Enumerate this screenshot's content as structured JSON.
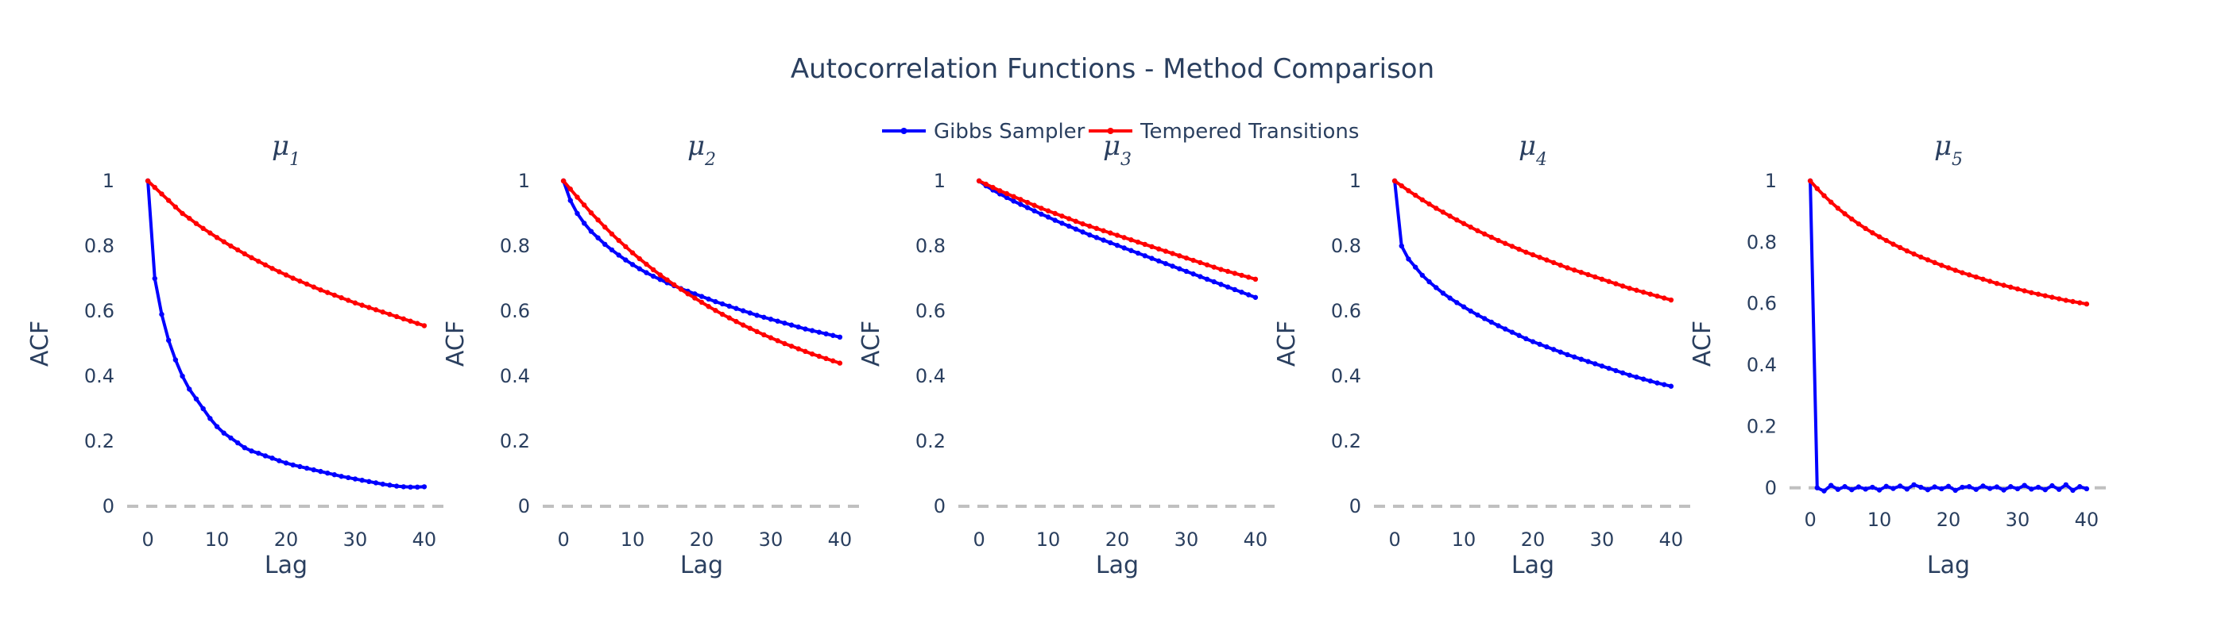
{
  "chart_data": {
    "type": "line",
    "title": "Autocorrelation Functions - Method Comparison",
    "legend": {
      "placement": "top-center",
      "entries": [
        {
          "name": "Gibbs Sampler",
          "color": "#0000ff"
        },
        {
          "name": "Tempered Transitions",
          "color": "#ff0000"
        }
      ]
    },
    "xlabel": "Lag",
    "ylabel": "ACF",
    "xlim": [
      -3,
      43
    ],
    "xticks": [
      0,
      10,
      20,
      30,
      40
    ],
    "grid": false,
    "zero_line": {
      "style": "dashed",
      "color": "#c0c0c0"
    },
    "panels": [
      {
        "subtitle_base": "μ",
        "subtitle_sub": "1",
        "ylim": [
          0,
          1
        ],
        "yticks": [
          0,
          0.2,
          0.4,
          0.6,
          0.8,
          1
        ],
        "series": [
          {
            "name": "Gibbs Sampler",
            "color": "#0000ff",
            "x": [
              0,
              1,
              2,
              3,
              4,
              5,
              6,
              7,
              8,
              9,
              10,
              11,
              12,
              13,
              14,
              15,
              16,
              17,
              18,
              19,
              20,
              21,
              22,
              23,
              24,
              25,
              26,
              27,
              28,
              29,
              30,
              31,
              32,
              33,
              34,
              35,
              36,
              37,
              38,
              39,
              40
            ],
            "values": [
              1.0,
              0.7,
              0.59,
              0.51,
              0.45,
              0.4,
              0.36,
              0.33,
              0.3,
              0.27,
              0.245,
              0.225,
              0.21,
              0.195,
              0.18,
              0.17,
              0.163,
              0.155,
              0.148,
              0.14,
              0.133,
              0.127,
              0.122,
              0.117,
              0.112,
              0.107,
              0.102,
              0.097,
              0.092,
              0.088,
              0.084,
              0.08,
              0.076,
              0.072,
              0.068,
              0.065,
              0.062,
              0.06,
              0.059,
              0.059,
              0.06
            ]
          },
          {
            "name": "Tempered Transitions",
            "color": "#ff0000",
            "x": [
              0,
              1,
              2,
              3,
              4,
              5,
              6,
              7,
              8,
              9,
              10,
              11,
              12,
              13,
              14,
              15,
              16,
              17,
              18,
              19,
              20,
              21,
              22,
              23,
              24,
              25,
              26,
              27,
              28,
              29,
              30,
              31,
              32,
              33,
              34,
              35,
              36,
              37,
              38,
              39,
              40
            ],
            "values": [
              1.0,
              0.98,
              0.96,
              0.94,
              0.92,
              0.9,
              0.885,
              0.869,
              0.854,
              0.84,
              0.826,
              0.813,
              0.8,
              0.788,
              0.776,
              0.764,
              0.753,
              0.742,
              0.731,
              0.721,
              0.711,
              0.701,
              0.692,
              0.683,
              0.674,
              0.665,
              0.657,
              0.649,
              0.641,
              0.633,
              0.625,
              0.618,
              0.611,
              0.604,
              0.597,
              0.59,
              0.583,
              0.576,
              0.569,
              0.562,
              0.555
            ]
          }
        ]
      },
      {
        "subtitle_base": "μ",
        "subtitle_sub": "2",
        "ylim": [
          0,
          1
        ],
        "yticks": [
          0,
          0.2,
          0.4,
          0.6,
          0.8,
          1
        ],
        "series": [
          {
            "name": "Gibbs Sampler",
            "color": "#0000ff",
            "x": [
              0,
              1,
              2,
              3,
              4,
              5,
              6,
              7,
              8,
              9,
              10,
              11,
              12,
              13,
              14,
              15,
              16,
              17,
              18,
              19,
              20,
              21,
              22,
              23,
              24,
              25,
              26,
              27,
              28,
              29,
              30,
              31,
              32,
              33,
              34,
              35,
              36,
              37,
              38,
              39,
              40
            ],
            "values": [
              1.0,
              0.94,
              0.9,
              0.87,
              0.845,
              0.825,
              0.805,
              0.788,
              0.772,
              0.757,
              0.743,
              0.73,
              0.718,
              0.707,
              0.697,
              0.687,
              0.678,
              0.669,
              0.661,
              0.653,
              0.645,
              0.637,
              0.629,
              0.622,
              0.615,
              0.608,
              0.601,
              0.594,
              0.587,
              0.581,
              0.575,
              0.569,
              0.563,
              0.557,
              0.551,
              0.545,
              0.54,
              0.535,
              0.53,
              0.525,
              0.52
            ]
          },
          {
            "name": "Tempered Transitions",
            "color": "#ff0000",
            "x": [
              0,
              1,
              2,
              3,
              4,
              5,
              6,
              7,
              8,
              9,
              10,
              11,
              12,
              13,
              14,
              15,
              16,
              17,
              18,
              19,
              20,
              21,
              22,
              23,
              24,
              25,
              26,
              27,
              28,
              29,
              30,
              31,
              32,
              33,
              34,
              35,
              36,
              37,
              38,
              39,
              40
            ],
            "values": [
              1.0,
              0.975,
              0.95,
              0.926,
              0.902,
              0.88,
              0.858,
              0.837,
              0.817,
              0.798,
              0.779,
              0.761,
              0.744,
              0.727,
              0.711,
              0.696,
              0.681,
              0.667,
              0.653,
              0.64,
              0.627,
              0.614,
              0.602,
              0.59,
              0.579,
              0.568,
              0.557,
              0.547,
              0.537,
              0.527,
              0.518,
              0.509,
              0.5,
              0.492,
              0.484,
              0.476,
              0.468,
              0.461,
              0.454,
              0.447,
              0.44
            ]
          }
        ]
      },
      {
        "subtitle_base": "μ",
        "subtitle_sub": "3",
        "ylim": [
          0,
          1
        ],
        "yticks": [
          0,
          0.2,
          0.4,
          0.6,
          0.8,
          1
        ],
        "series": [
          {
            "name": "Gibbs Sampler",
            "color": "#0000ff",
            "x": [
              0,
              1,
              2,
              3,
              4,
              5,
              6,
              7,
              8,
              9,
              10,
              11,
              12,
              13,
              14,
              15,
              16,
              17,
              18,
              19,
              20,
              21,
              22,
              23,
              24,
              25,
              26,
              27,
              28,
              29,
              30,
              31,
              32,
              33,
              34,
              35,
              36,
              37,
              38,
              39,
              40
            ],
            "values": [
              1.0,
              0.985,
              0.972,
              0.96,
              0.949,
              0.938,
              0.928,
              0.918,
              0.908,
              0.898,
              0.889,
              0.879,
              0.87,
              0.861,
              0.852,
              0.843,
              0.834,
              0.826,
              0.818,
              0.81,
              0.802,
              0.794,
              0.786,
              0.778,
              0.77,
              0.762,
              0.754,
              0.746,
              0.738,
              0.73,
              0.722,
              0.714,
              0.706,
              0.698,
              0.69,
              0.682,
              0.674,
              0.666,
              0.658,
              0.65,
              0.642
            ]
          },
          {
            "name": "Tempered Transitions",
            "color": "#ff0000",
            "x": [
              0,
              1,
              2,
              3,
              4,
              5,
              6,
              7,
              8,
              9,
              10,
              11,
              12,
              13,
              14,
              15,
              16,
              17,
              18,
              19,
              20,
              21,
              22,
              23,
              24,
              25,
              26,
              27,
              28,
              29,
              30,
              31,
              32,
              33,
              34,
              35,
              36,
              37,
              38,
              39,
              40
            ],
            "values": [
              1.0,
              0.99,
              0.98,
              0.97,
              0.961,
              0.952,
              0.943,
              0.934,
              0.925,
              0.916,
              0.908,
              0.9,
              0.892,
              0.884,
              0.876,
              0.868,
              0.861,
              0.854,
              0.847,
              0.84,
              0.833,
              0.826,
              0.819,
              0.812,
              0.805,
              0.798,
              0.791,
              0.784,
              0.777,
              0.77,
              0.763,
              0.756,
              0.749,
              0.742,
              0.735,
              0.728,
              0.722,
              0.716,
              0.71,
              0.704,
              0.698
            ]
          }
        ]
      },
      {
        "subtitle_base": "μ",
        "subtitle_sub": "4",
        "ylim": [
          0,
          1
        ],
        "yticks": [
          0,
          0.2,
          0.4,
          0.6,
          0.8,
          1
        ],
        "series": [
          {
            "name": "Gibbs Sampler",
            "color": "#0000ff",
            "x": [
              0,
              1,
              2,
              3,
              4,
              5,
              6,
              7,
              8,
              9,
              10,
              11,
              12,
              13,
              14,
              15,
              16,
              17,
              18,
              19,
              20,
              21,
              22,
              23,
              24,
              25,
              26,
              27,
              28,
              29,
              30,
              31,
              32,
              33,
              34,
              35,
              36,
              37,
              38,
              39,
              40
            ],
            "values": [
              1.0,
              0.8,
              0.76,
              0.735,
              0.71,
              0.69,
              0.672,
              0.655,
              0.64,
              0.626,
              0.613,
              0.6,
              0.588,
              0.577,
              0.566,
              0.555,
              0.545,
              0.535,
              0.525,
              0.515,
              0.506,
              0.498,
              0.49,
              0.482,
              0.474,
              0.466,
              0.459,
              0.452,
              0.445,
              0.438,
              0.431,
              0.424,
              0.417,
              0.41,
              0.403,
              0.397,
              0.391,
              0.385,
              0.379,
              0.374,
              0.369
            ]
          },
          {
            "name": "Tempered Transitions",
            "color": "#ff0000",
            "x": [
              0,
              1,
              2,
              3,
              4,
              5,
              6,
              7,
              8,
              9,
              10,
              11,
              12,
              13,
              14,
              15,
              16,
              17,
              18,
              19,
              20,
              21,
              22,
              23,
              24,
              25,
              26,
              27,
              28,
              29,
              30,
              31,
              32,
              33,
              34,
              35,
              36,
              37,
              38,
              39,
              40
            ],
            "values": [
              1.0,
              0.985,
              0.97,
              0.956,
              0.942,
              0.929,
              0.916,
              0.904,
              0.892,
              0.88,
              0.869,
              0.858,
              0.847,
              0.837,
              0.827,
              0.817,
              0.808,
              0.799,
              0.79,
              0.781,
              0.773,
              0.765,
              0.757,
              0.749,
              0.741,
              0.733,
              0.726,
              0.719,
              0.712,
              0.705,
              0.698,
              0.691,
              0.684,
              0.677,
              0.67,
              0.664,
              0.658,
              0.652,
              0.646,
              0.64,
              0.634
            ]
          }
        ]
      },
      {
        "subtitle_base": "μ",
        "subtitle_sub": "5",
        "ylim": [
          -0.06,
          1
        ],
        "yticks": [
          0,
          0.2,
          0.4,
          0.6,
          0.8,
          1
        ],
        "series": [
          {
            "name": "Gibbs Sampler",
            "color": "#0000ff",
            "x": [
              0,
              1,
              2,
              3,
              4,
              5,
              6,
              7,
              8,
              9,
              10,
              11,
              12,
              13,
              14,
              15,
              16,
              17,
              18,
              19,
              20,
              21,
              22,
              23,
              24,
              25,
              26,
              27,
              28,
              29,
              30,
              31,
              32,
              33,
              34,
              35,
              36,
              37,
              38,
              39,
              40
            ],
            "values": [
              1.0,
              0.0,
              -0.01,
              0.008,
              -0.005,
              0.004,
              -0.006,
              0.003,
              -0.004,
              0.002,
              -0.007,
              0.005,
              -0.002,
              0.006,
              -0.004,
              0.01,
              0.002,
              -0.006,
              0.003,
              -0.003,
              0.005,
              -0.008,
              0.002,
              0.004,
              -0.005,
              0.006,
              -0.002,
              0.003,
              -0.007,
              0.004,
              -0.003,
              0.008,
              -0.004,
              0.002,
              -0.006,
              0.007,
              -0.005,
              0.01,
              -0.008,
              0.004,
              -0.003
            ]
          },
          {
            "name": "Tempered Transitions",
            "color": "#ff0000",
            "x": [
              0,
              1,
              2,
              3,
              4,
              5,
              6,
              7,
              8,
              9,
              10,
              11,
              12,
              13,
              14,
              15,
              16,
              17,
              18,
              19,
              20,
              21,
              22,
              23,
              24,
              25,
              26,
              27,
              28,
              29,
              30,
              31,
              32,
              33,
              34,
              35,
              36,
              37,
              38,
              39,
              40
            ],
            "values": [
              1.0,
              0.975,
              0.952,
              0.931,
              0.911,
              0.893,
              0.876,
              0.86,
              0.845,
              0.831,
              0.818,
              0.806,
              0.794,
              0.783,
              0.772,
              0.762,
              0.752,
              0.743,
              0.734,
              0.725,
              0.717,
              0.709,
              0.701,
              0.694,
              0.687,
              0.68,
              0.673,
              0.666,
              0.66,
              0.654,
              0.648,
              0.642,
              0.636,
              0.631,
              0.626,
              0.621,
              0.616,
              0.611,
              0.607,
              0.603,
              0.599
            ]
          }
        ]
      }
    ]
  }
}
